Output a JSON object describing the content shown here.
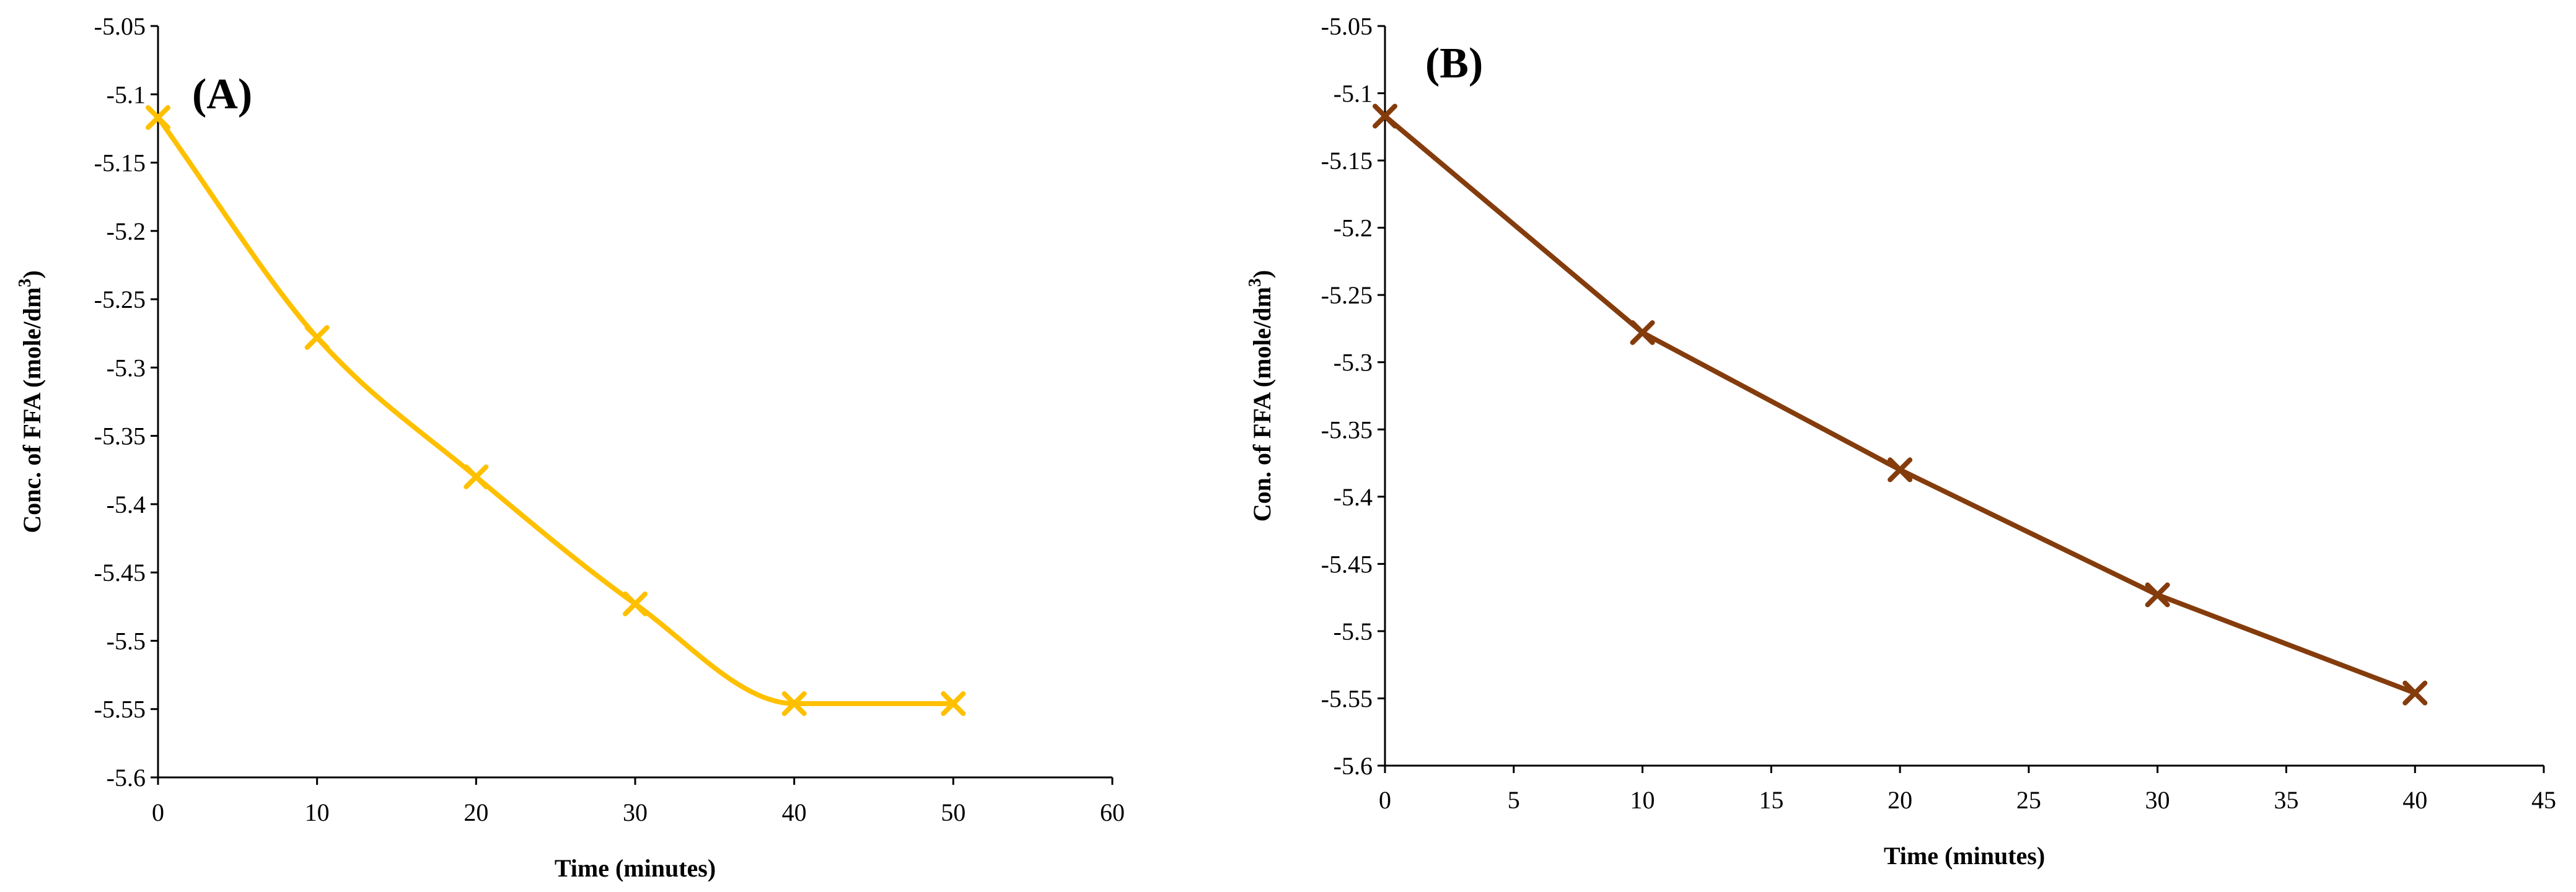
{
  "chart_data": [
    {
      "type": "line",
      "panel_label": "(A)",
      "xlabel": "Time  (minutes)",
      "ylabel": "Conc. of FFA  (mole/dm³)",
      "ylabel_main": "Conc. of FFA  (mole/dm",
      "ylabel_sup": "3",
      "ylabel_tail": ")",
      "xlim": [
        0,
        60
      ],
      "ylim": [
        -5.6,
        -5.05
      ],
      "xticks": [
        0,
        10,
        20,
        30,
        40,
        50,
        60
      ],
      "yticks": [
        -5.05,
        -5.1,
        -5.15,
        -5.2,
        -5.25,
        -5.3,
        -5.35,
        -5.4,
        -5.45,
        -5.5,
        -5.55,
        -5.6
      ],
      "ytick_labels": [
        "-5.05",
        "-5.1",
        "-5.15",
        "-5.2",
        "-5.25",
        "-5.3",
        "-5.35",
        "-5.4",
        "-5.45",
        "-5.5",
        "-5.55",
        "-5.6"
      ],
      "smooth": true,
      "color": "#ffc000",
      "marker": "x",
      "grid": false,
      "series": [
        {
          "x": [
            0,
            10,
            20,
            30,
            40,
            50
          ],
          "y": [
            -5.117,
            -5.278,
            -5.38,
            -5.473,
            -5.546,
            -5.546
          ]
        }
      ]
    },
    {
      "type": "line",
      "panel_label": "(B)",
      "xlabel": "Time (minutes)",
      "ylabel": "Con. of FFA  (mole/dm³)",
      "ylabel_main": "Con. of FFA  (mole/dm",
      "ylabel_sup": "3",
      "ylabel_tail": ")",
      "xlim": [
        0,
        45
      ],
      "ylim": [
        -5.6,
        -5.05
      ],
      "xticks": [
        0,
        5,
        10,
        15,
        20,
        25,
        30,
        35,
        40,
        45
      ],
      "yticks": [
        -5.05,
        -5.1,
        -5.15,
        -5.2,
        -5.25,
        -5.3,
        -5.35,
        -5.4,
        -5.45,
        -5.5,
        -5.55,
        -5.6
      ],
      "ytick_labels": [
        "-5.05",
        "-5.1",
        "-5.15",
        "-5.2",
        "-5.25",
        "-5.3",
        "-5.35",
        "-5.4",
        "-5.45",
        "-5.5",
        "-5.55",
        "-5.6"
      ],
      "smooth": false,
      "color": "#843c0c",
      "marker": "x",
      "grid": false,
      "series": [
        {
          "x": [
            0,
            10,
            20,
            30,
            40
          ],
          "y": [
            -5.117,
            -5.278,
            -5.38,
            -5.473,
            -5.546
          ]
        }
      ]
    }
  ]
}
